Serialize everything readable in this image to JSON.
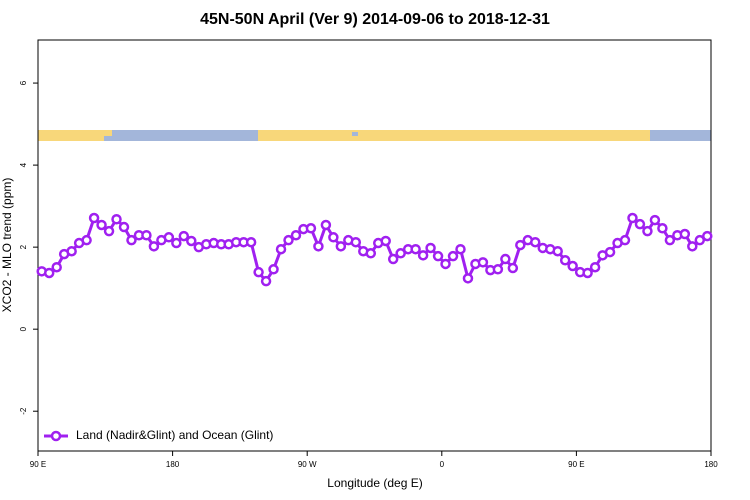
{
  "chart_data": {
    "type": "line",
    "title": "45N-50N April (Ver 9)   2014-09-06 to 2018-12-31",
    "x_label": "Longitude (deg E)",
    "y_label": "XCO2 - MLO trend (ppm)",
    "xlim": [
      90,
      540
    ],
    "ylim": [
      -2.97,
      7.05
    ],
    "xticks": [
      {
        "value": 90,
        "label": "90 E"
      },
      180,
      {
        "value": 270,
        "label": "90 W"
      },
      {
        "value": 360,
        "label": "0"
      },
      {
        "value": 450,
        "label": "90 E"
      },
      {
        "value": 540,
        "label": "180"
      }
    ],
    "yticks": [
      -2,
      0,
      2,
      4,
      6
    ],
    "legend": "lower left",
    "x": [
      92.5,
      97.5,
      102.5,
      107.5,
      112.5,
      117.5,
      122.5,
      127.5,
      132.5,
      137.5,
      142.5,
      147.5,
      152.5,
      157.5,
      162.5,
      167.5,
      172.5,
      177.5,
      182.5,
      187.5,
      192.5,
      197.5,
      202.5,
      207.5,
      212.5,
      217.5,
      222.5,
      227.5,
      232.5,
      237.5,
      242.5,
      247.5,
      252.5,
      257.5,
      262.5,
      267.5,
      272.5,
      277.5,
      282.5,
      287.5,
      292.5,
      297.5,
      302.5,
      307.5,
      312.5,
      317.5,
      322.5,
      327.5,
      332.5,
      337.5,
      342.5,
      347.5,
      352.5,
      357.5,
      362.5,
      367.5,
      372.5,
      377.5,
      382.5,
      387.5,
      392.5,
      397.5,
      402.5,
      407.5,
      412.5,
      417.5,
      422.5,
      427.5,
      432.5,
      437.5,
      442.5,
      447.5,
      452.5,
      457.5,
      462.5,
      467.5,
      472.5,
      477.5,
      482.5,
      487.5,
      492.5,
      497.5,
      502.5,
      507.5,
      512.5,
      517.5,
      522.5,
      527.5,
      532.5,
      537.5
    ],
    "series": [
      {
        "name": "Land (Nadir&Glint) and Ocean (Glint)",
        "color": "#a020f0",
        "values": [
          1.41,
          1.37,
          1.51,
          1.83,
          1.9,
          2.1,
          2.17,
          2.71,
          2.54,
          2.39,
          2.68,
          2.49,
          2.17,
          2.29,
          2.29,
          2.02,
          2.17,
          2.24,
          2.1,
          2.27,
          2.15,
          2.0,
          2.07,
          2.1,
          2.07,
          2.07,
          2.12,
          2.12,
          2.12,
          1.39,
          1.17,
          1.46,
          1.95,
          2.17,
          2.29,
          2.44,
          2.46,
          2.02,
          2.54,
          2.24,
          2.02,
          2.17,
          2.12,
          1.9,
          1.85,
          2.1,
          2.15,
          1.71,
          1.85,
          1.95,
          1.95,
          1.8,
          1.98,
          1.78,
          1.59,
          1.78,
          1.95,
          1.24,
          1.59,
          1.63,
          1.44,
          1.46,
          1.71,
          1.49,
          2.05,
          2.17,
          2.12,
          1.98,
          1.95,
          1.9,
          1.68,
          1.54,
          1.39,
          1.37,
          1.51,
          1.8,
          1.88,
          2.1,
          2.17,
          2.71,
          2.56,
          2.39,
          2.66,
          2.46,
          2.17,
          2.29,
          2.32,
          2.02,
          2.17,
          2.27
        ]
      }
    ]
  }
}
